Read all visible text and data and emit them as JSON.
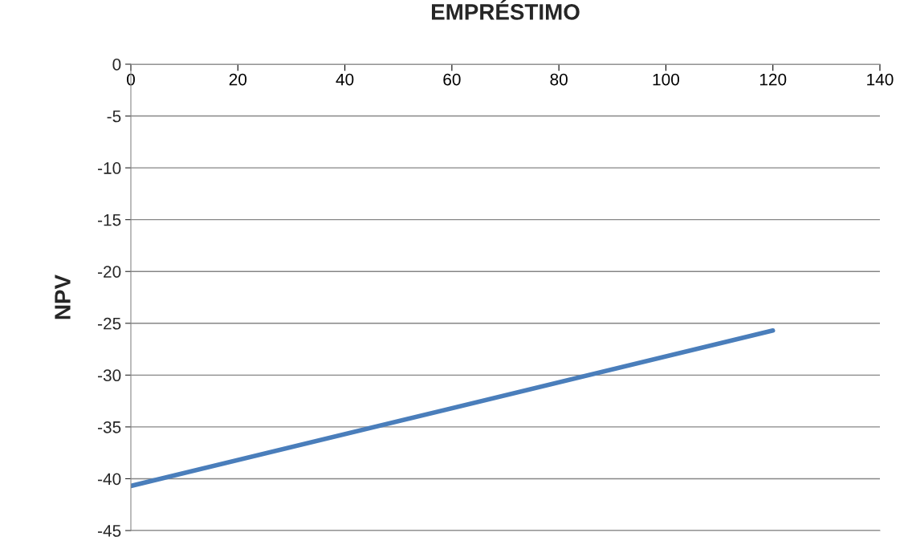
{
  "chart_data": {
    "type": "line",
    "title": "EMPRÉSTIMO",
    "ylabel": "NPV",
    "x": [
      0,
      120
    ],
    "series": [
      {
        "color": "#4a7ebb",
        "values": [
          -40.7,
          -25.7
        ]
      }
    ],
    "xlim": [
      0,
      140
    ],
    "xticks": [
      0,
      20,
      40,
      60,
      80,
      100,
      120,
      140
    ],
    "ylim": [
      -45,
      0
    ],
    "yticks": [
      -45,
      -40,
      -35,
      -30,
      -25,
      -20,
      -15,
      -10,
      -5,
      0
    ],
    "grid": "y",
    "marker": "none",
    "line_style": "solid"
  }
}
